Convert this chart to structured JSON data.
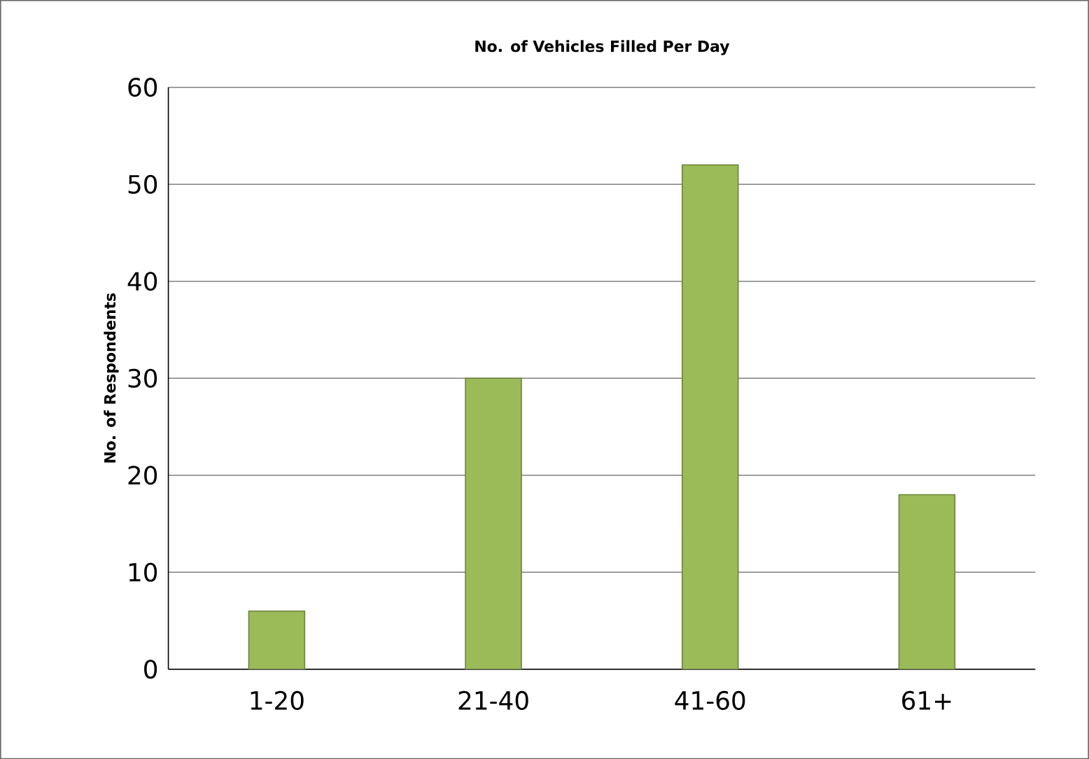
{
  "chart_data": {
    "type": "bar",
    "title": "No. of Vehicles Filled Per Day",
    "ylabel": "No. of Respondents",
    "categories": [
      "1-20",
      "21-40",
      "41-60",
      "61+"
    ],
    "values": [
      6,
      30,
      52,
      18
    ],
    "color": "#9bbb59",
    "ylim": [
      0,
      60
    ],
    "yticks": [
      0,
      10,
      20,
      30,
      40,
      50,
      60
    ],
    "grid": "y"
  }
}
